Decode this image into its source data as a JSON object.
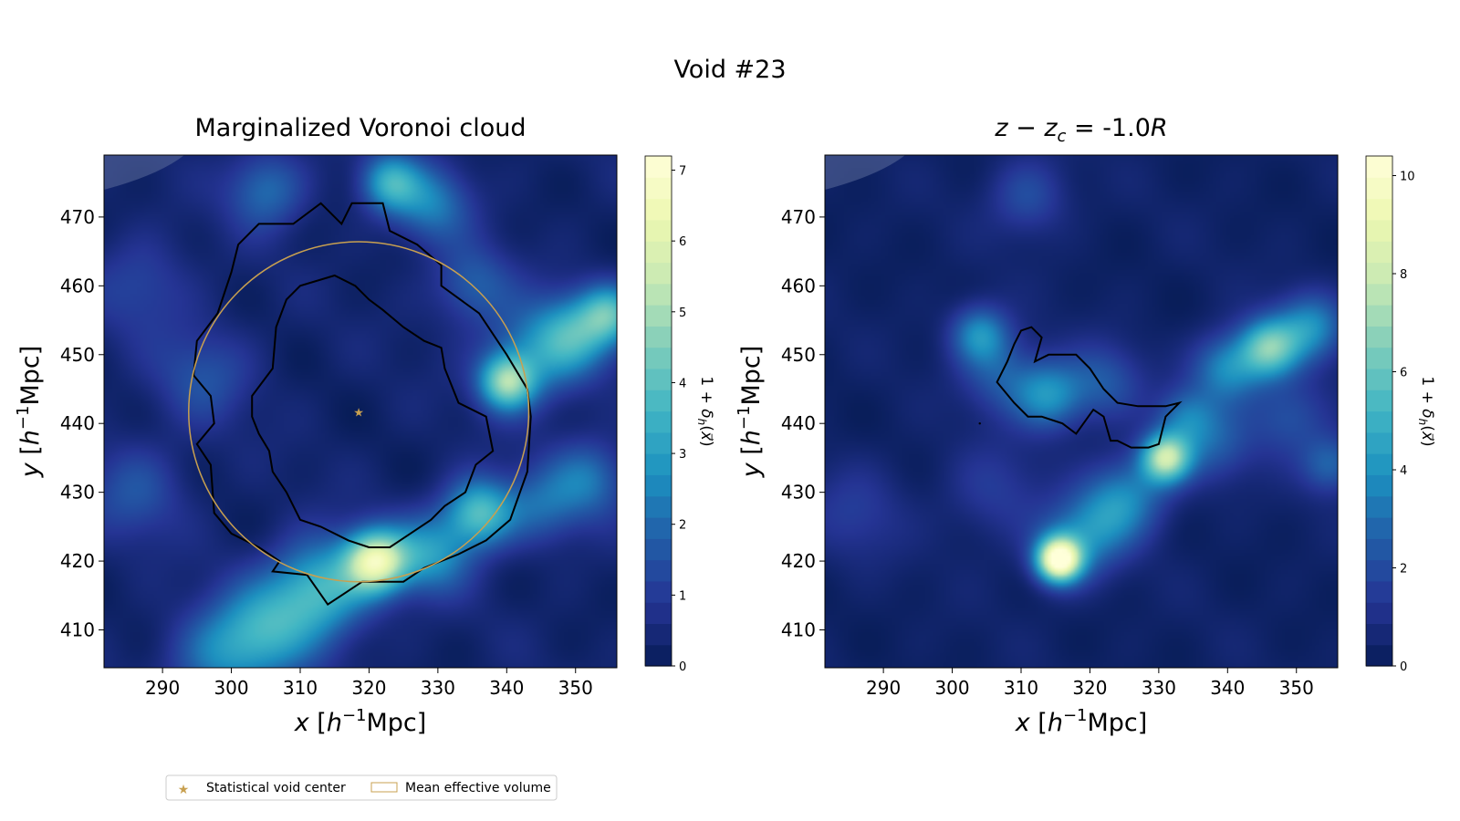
{
  "figure": {
    "suptitle": "Void #23"
  },
  "legend": {
    "items": [
      {
        "label": "Statistical void center",
        "marker": "star",
        "color": "#c8a050"
      },
      {
        "label": "Mean effective volume",
        "marker": "rect-outline",
        "color": "#c8a050"
      }
    ]
  },
  "chart_data": [
    {
      "type": "heatmap",
      "title": "Marginalized Voronoi cloud",
      "xlabel": "x [h⁻¹Mpc]",
      "ylabel": "y [h⁻¹Mpc]",
      "xlim": [
        281.5,
        356
      ],
      "ylim": [
        404.5,
        479
      ],
      "xticks": [
        290,
        300,
        310,
        320,
        330,
        340,
        350
      ],
      "yticks": [
        410,
        420,
        430,
        440,
        450,
        460,
        470
      ],
      "colorbar": {
        "label": "1 + δh(x⃗)",
        "range": [
          0,
          7.2
        ],
        "ticks": [
          0,
          1,
          2,
          3,
          4,
          5,
          6,
          7
        ]
      },
      "colormap": [
        "#081d58",
        "#253494",
        "#225ea8",
        "#1d91c0",
        "#41b6c4",
        "#7fcdbb",
        "#c7e9b4",
        "#edf8b1",
        "#ffffd9"
      ],
      "void_center": [
        318.5,
        441.7
      ],
      "effective_radius": 24.7,
      "density_blobs": [
        {
          "x": 321,
          "y": 420,
          "amp": 5.5,
          "s": 3.2
        },
        {
          "x": 313,
          "y": 416,
          "amp": 3.2,
          "s": 5
        },
        {
          "x": 305,
          "y": 410,
          "amp": 2.5,
          "s": 5
        },
        {
          "x": 298,
          "y": 406,
          "amp": 1.8,
          "s": 5
        },
        {
          "x": 329,
          "y": 421,
          "amp": 2.5,
          "s": 4
        },
        {
          "x": 336,
          "y": 427,
          "amp": 3.5,
          "s": 3.5
        },
        {
          "x": 340,
          "y": 446,
          "amp": 4.0,
          "s": 2.8
        },
        {
          "x": 344,
          "y": 450,
          "amp": 2.0,
          "s": 5
        },
        {
          "x": 350,
          "y": 453,
          "amp": 2.5,
          "s": 4
        },
        {
          "x": 355,
          "y": 456,
          "amp": 3.0,
          "s": 3
        },
        {
          "x": 352,
          "y": 432,
          "amp": 1.8,
          "s": 4
        },
        {
          "x": 345,
          "y": 428,
          "amp": 1.5,
          "s": 4
        },
        {
          "x": 335,
          "y": 460,
          "amp": 1.5,
          "s": 4
        },
        {
          "x": 329,
          "y": 472,
          "amp": 2.0,
          "s": 4
        },
        {
          "x": 323,
          "y": 475,
          "amp": 2.8,
          "s": 3
        },
        {
          "x": 305,
          "y": 474,
          "amp": 1.8,
          "s": 4
        },
        {
          "x": 296,
          "y": 447,
          "amp": 1.2,
          "s": 5
        },
        {
          "x": 286,
          "y": 430,
          "amp": 1.2,
          "s": 5
        },
        {
          "x": 287,
          "y": 460,
          "amp": 1.0,
          "s": 5
        }
      ],
      "contours": [
        {
          "name": "outer",
          "points": [
            [
              294.5,
              447
            ],
            [
              297,
              444
            ],
            [
              297.5,
              440
            ],
            [
              295,
              437
            ],
            [
              297,
              434
            ],
            [
              297.5,
              427
            ],
            [
              300,
              424
            ],
            [
              304,
              422
            ],
            [
              307,
              420
            ],
            [
              306,
              418.5
            ],
            [
              311,
              418
            ],
            [
              314,
              413.7
            ],
            [
              319,
              417
            ],
            [
              325,
              417
            ],
            [
              328,
              419
            ],
            [
              333,
              421
            ],
            [
              337,
              423
            ],
            [
              340.5,
              426
            ],
            [
              343,
              433
            ],
            [
              343.5,
              441
            ],
            [
              343,
              445
            ],
            [
              340,
              450
            ],
            [
              336,
              456
            ],
            [
              330.5,
              460
            ],
            [
              330.5,
              463
            ],
            [
              327,
              466
            ],
            [
              323,
              468
            ],
            [
              322,
              472
            ],
            [
              317.5,
              472
            ],
            [
              316,
              469
            ],
            [
              313,
              472
            ],
            [
              309,
              469
            ],
            [
              304,
              469
            ],
            [
              301,
              466
            ],
            [
              300,
              462
            ],
            [
              298,
              456
            ],
            [
              295,
              452
            ],
            [
              294.5,
              447
            ]
          ]
        },
        {
          "name": "inner",
          "points": [
            [
              303,
              444
            ],
            [
              306,
              448
            ],
            [
              306.5,
              454
            ],
            [
              308,
              458
            ],
            [
              310,
              460
            ],
            [
              315,
              461.5
            ],
            [
              318,
              460
            ],
            [
              320,
              458
            ],
            [
              322,
              456.5
            ],
            [
              325,
              454
            ],
            [
              328,
              452
            ],
            [
              330.5,
              451
            ],
            [
              331,
              448
            ],
            [
              333,
              443
            ],
            [
              337,
              441
            ],
            [
              338,
              436
            ],
            [
              335.5,
              434
            ],
            [
              334,
              430
            ],
            [
              331,
              428
            ],
            [
              329,
              426
            ],
            [
              326,
              424
            ],
            [
              323,
              422
            ],
            [
              320,
              422
            ],
            [
              317,
              423
            ],
            [
              313,
              425
            ],
            [
              310,
              426
            ],
            [
              308,
              430
            ],
            [
              306,
              433
            ],
            [
              305.5,
              436
            ],
            [
              304,
              438.5
            ],
            [
              303,
              441
            ],
            [
              303,
              444
            ]
          ]
        }
      ]
    },
    {
      "type": "heatmap",
      "title": "z − zc = -1.0R",
      "xlabel": "x [h⁻¹Mpc]",
      "ylabel": "y [h⁻¹Mpc]",
      "xlim": [
        281.5,
        356
      ],
      "ylim": [
        404.5,
        479
      ],
      "xticks": [
        290,
        300,
        310,
        320,
        330,
        340,
        350
      ],
      "yticks": [
        410,
        420,
        430,
        440,
        450,
        460,
        470
      ],
      "colorbar": {
        "label": "1 + δh(x⃗)",
        "range": [
          0,
          10.4
        ],
        "ticks": [
          0,
          2,
          4,
          6,
          8,
          10
        ]
      },
      "colormap": [
        "#081d58",
        "#253494",
        "#225ea8",
        "#1d91c0",
        "#41b6c4",
        "#7fcdbb",
        "#c7e9b4",
        "#edf8b1",
        "#ffffd9"
      ],
      "density_blobs": [
        {
          "x": 315.5,
          "y": 420.2,
          "amp": 9.5,
          "s": 2.2
        },
        {
          "x": 317,
          "y": 422,
          "amp": 2.5,
          "s": 4
        },
        {
          "x": 322,
          "y": 426,
          "amp": 2.5,
          "s": 4
        },
        {
          "x": 326,
          "y": 430,
          "amp": 2.5,
          "s": 4
        },
        {
          "x": 331,
          "y": 435,
          "amp": 7.0,
          "s": 2.5
        },
        {
          "x": 334,
          "y": 441,
          "amp": 2.5,
          "s": 3
        },
        {
          "x": 338,
          "y": 437,
          "amp": 2.0,
          "s": 4
        },
        {
          "x": 346,
          "y": 451,
          "amp": 5.5,
          "s": 3
        },
        {
          "x": 340,
          "y": 448,
          "amp": 3.5,
          "s": 3.5
        },
        {
          "x": 352,
          "y": 454,
          "amp": 3.5,
          "s": 3.5
        },
        {
          "x": 349,
          "y": 441,
          "amp": 2.0,
          "s": 4
        },
        {
          "x": 355,
          "y": 434,
          "amp": 2.5,
          "s": 3
        },
        {
          "x": 314,
          "y": 444,
          "amp": 3.5,
          "s": 3.5
        },
        {
          "x": 307,
          "y": 447,
          "amp": 2.0,
          "s": 4
        },
        {
          "x": 304,
          "y": 453,
          "amp": 3.5,
          "s": 3
        },
        {
          "x": 322,
          "y": 446,
          "amp": 2.0,
          "s": 4
        },
        {
          "x": 311,
          "y": 473,
          "amp": 1.8,
          "s": 4
        },
        {
          "x": 286,
          "y": 427,
          "amp": 1.2,
          "s": 5
        },
        {
          "x": 306,
          "y": 430,
          "amp": 1.2,
          "s": 5
        }
      ],
      "contours": [
        {
          "name": "slice",
          "points": [
            [
              306.5,
              446
            ],
            [
              308,
              449
            ],
            [
              309,
              451.5
            ],
            [
              310,
              453.5
            ],
            [
              311.5,
              454
            ],
            [
              313,
              452.5
            ],
            [
              312,
              449
            ],
            [
              314,
              450
            ],
            [
              318,
              450
            ],
            [
              320,
              448
            ],
            [
              322,
              445
            ],
            [
              324,
              443
            ],
            [
              327,
              442.5
            ],
            [
              331,
              442.5
            ],
            [
              333,
              443
            ],
            [
              331,
              441
            ],
            [
              330,
              437
            ],
            [
              328.5,
              436.5
            ],
            [
              326,
              436.5
            ],
            [
              324,
              437.5
            ],
            [
              323,
              437.5
            ],
            [
              322,
              441
            ],
            [
              320.5,
              442
            ],
            [
              318,
              438.5
            ],
            [
              316,
              440
            ],
            [
              313,
              441
            ],
            [
              311,
              441
            ],
            [
              309,
              443
            ],
            [
              306.5,
              446
            ]
          ]
        }
      ]
    }
  ]
}
